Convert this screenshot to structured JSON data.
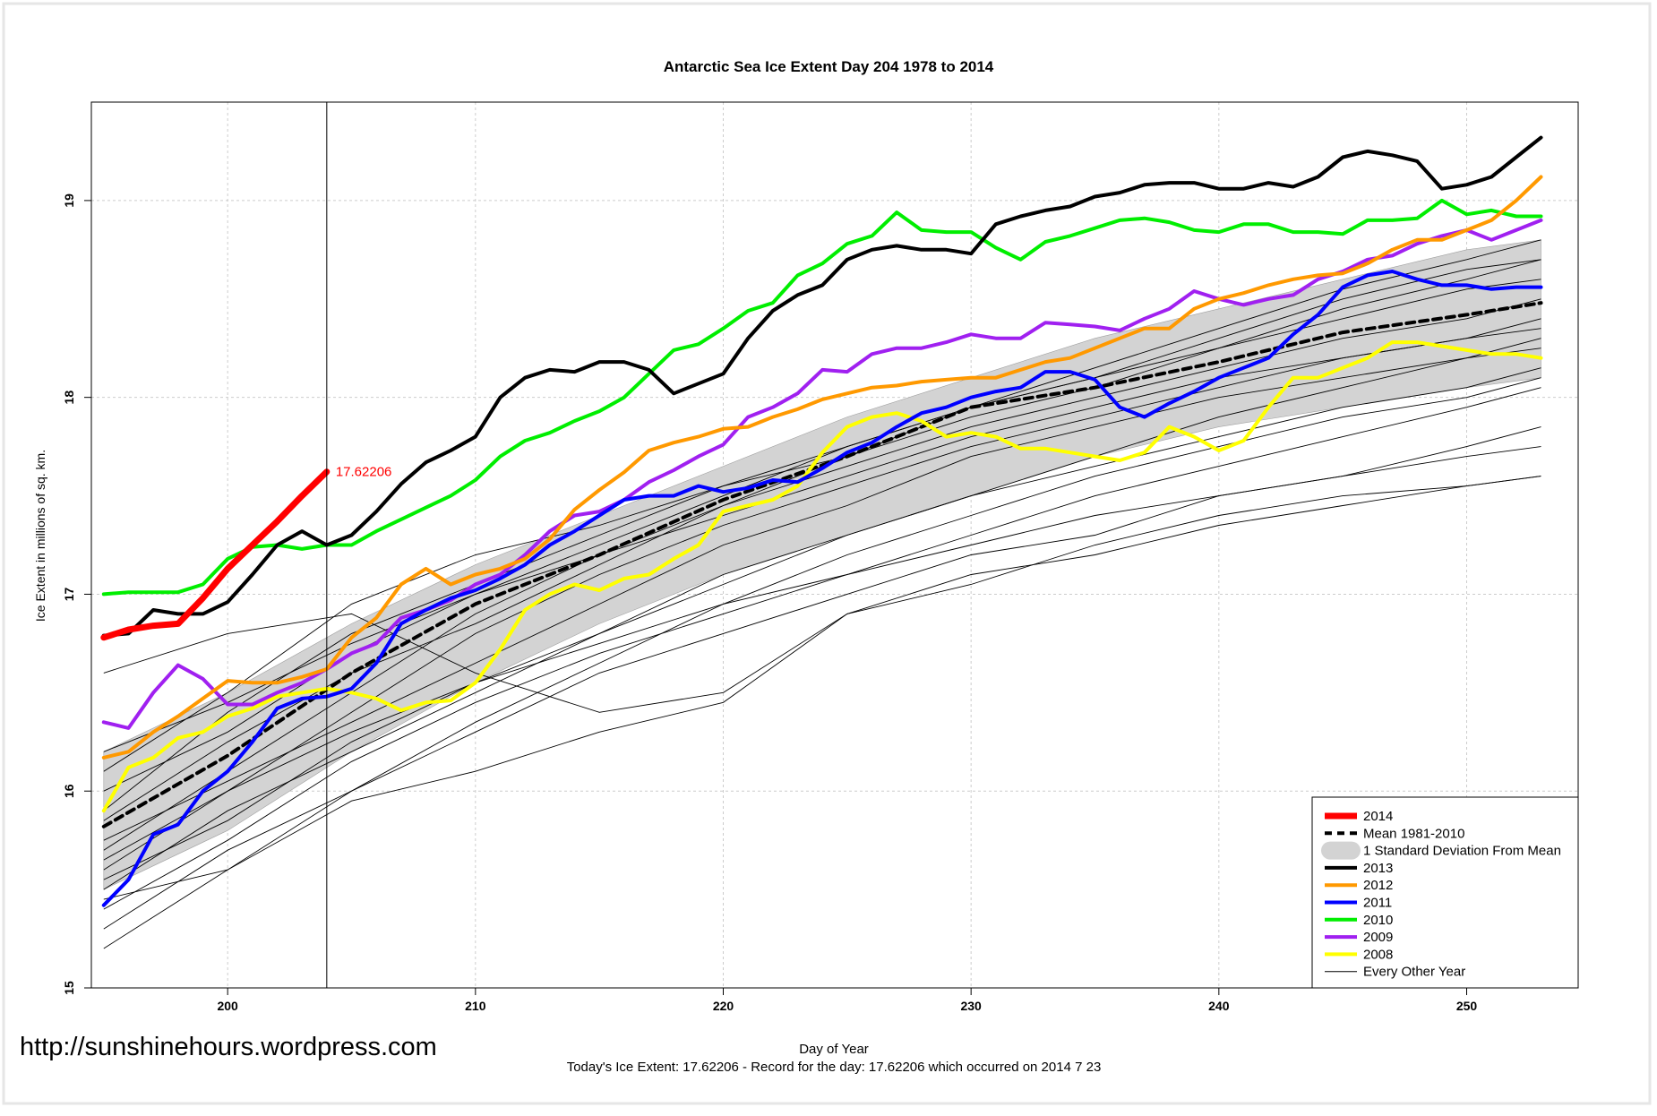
{
  "chart_data": {
    "type": "line",
    "title": "Antarctic Sea Ice Extent Day 204 1978 to 2014",
    "xlabel": "Day of Year",
    "ylabel": "Ice Extent in millions of sq. km.",
    "xlim": [
      194.5,
      254.5
    ],
    "ylim": [
      15,
      19.5
    ],
    "x_ticks": [
      200,
      210,
      220,
      230,
      240,
      250
    ],
    "y_ticks": [
      15,
      16,
      17,
      18,
      19
    ],
    "grid": true,
    "legend_position": "bottom-right",
    "marker_day": 204,
    "annotation": "17.62206",
    "watermark": "http://sunshinehours.wordpress.com",
    "footer": "Today's Ice Extent: 17.62206  - Record for the day: 17.62206 which occurred on 2014 7 23",
    "legend": [
      {
        "label": "2014",
        "color": "#ff0000",
        "style": "thick"
      },
      {
        "label": "Mean 1981-2010",
        "color": "#000000",
        "style": "dashed"
      },
      {
        "label": "1 Standard Deviation From Mean",
        "color": "#d3d3d3",
        "style": "band"
      },
      {
        "label": "2013",
        "color": "#000000",
        "style": "line"
      },
      {
        "label": "2012",
        "color": "#ff9900",
        "style": "line"
      },
      {
        "label": "2011",
        "color": "#0000ff",
        "style": "line"
      },
      {
        "label": "2010",
        "color": "#00ee00",
        "style": "line"
      },
      {
        "label": "2009",
        "color": "#a020f0",
        "style": "line"
      },
      {
        "label": "2008",
        "color": "#ffff00",
        "style": "line"
      },
      {
        "label": "Every Other Year",
        "color": "#000000",
        "style": "thin"
      }
    ],
    "sd_band": {
      "x": [
        195,
        200,
        205,
        210,
        215,
        220,
        225,
        230,
        235,
        240,
        245,
        250,
        253
      ],
      "upper": [
        16.2,
        16.5,
        16.85,
        17.15,
        17.4,
        17.65,
        17.9,
        18.1,
        18.3,
        18.45,
        18.6,
        18.75,
        18.8
      ],
      "lower": [
        15.5,
        15.8,
        16.2,
        16.55,
        16.85,
        17.1,
        17.3,
        17.5,
        17.7,
        17.85,
        17.95,
        18.05,
        18.1
      ]
    },
    "series": [
      {
        "name": "2014",
        "color": "#ff0000",
        "x": [
          195,
          196,
          197,
          198,
          199,
          200,
          201,
          202,
          203,
          204
        ],
        "values": [
          16.78,
          16.82,
          16.84,
          16.85,
          16.98,
          17.13,
          17.25,
          17.37,
          17.5,
          17.62206
        ]
      },
      {
        "name": "Mean 1981-2010",
        "color": "#000000",
        "x": [
          195,
          200,
          205,
          210,
          215,
          220,
          225,
          230,
          235,
          240,
          245,
          250,
          253
        ],
        "values": [
          15.82,
          16.18,
          16.6,
          16.95,
          17.2,
          17.48,
          17.7,
          17.95,
          18.05,
          18.18,
          18.33,
          18.42,
          18.48
        ]
      },
      {
        "name": "2013",
        "color": "#000000",
        "x": [
          195,
          196,
          197,
          198,
          199,
          200,
          201,
          202,
          203,
          204,
          205,
          206,
          207,
          208,
          209,
          210,
          211,
          212,
          213,
          214,
          215,
          216,
          217,
          218,
          219,
          220,
          221,
          222,
          223,
          224,
          225,
          226,
          227,
          228,
          229,
          230,
          231,
          232,
          233,
          234,
          235,
          236,
          237,
          238,
          239,
          240,
          241,
          242,
          243,
          244,
          245,
          246,
          247,
          248,
          249,
          250,
          251,
          252,
          253
        ],
        "values": [
          16.79,
          16.8,
          16.92,
          16.9,
          16.9,
          16.96,
          17.1,
          17.25,
          17.32,
          17.25,
          17.3,
          17.42,
          17.56,
          17.67,
          17.73,
          17.8,
          18.0,
          18.1,
          18.14,
          18.13,
          18.18,
          18.18,
          18.14,
          18.02,
          18.07,
          18.12,
          18.3,
          18.44,
          18.52,
          18.57,
          18.7,
          18.75,
          18.77,
          18.75,
          18.75,
          18.73,
          18.88,
          18.92,
          18.95,
          18.97,
          19.02,
          19.04,
          19.08,
          19.09,
          19.09,
          19.06,
          19.06,
          19.09,
          19.07,
          19.12,
          19.22,
          19.25,
          19.23,
          19.2,
          19.06,
          19.08,
          19.12,
          19.22,
          19.32
        ]
      },
      {
        "name": "2012",
        "color": "#ff9900",
        "x": [
          195,
          196,
          197,
          198,
          199,
          200,
          201,
          202,
          203,
          204,
          205,
          206,
          207,
          208,
          209,
          210,
          211,
          212,
          213,
          214,
          215,
          216,
          217,
          218,
          219,
          220,
          221,
          222,
          223,
          224,
          225,
          226,
          227,
          228,
          229,
          230,
          231,
          232,
          233,
          234,
          235,
          236,
          237,
          238,
          239,
          240,
          241,
          242,
          243,
          244,
          245,
          246,
          247,
          248,
          249,
          250,
          251,
          252,
          253
        ],
        "values": [
          16.17,
          16.2,
          16.3,
          16.38,
          16.47,
          16.56,
          16.55,
          16.55,
          16.58,
          16.62,
          16.78,
          16.88,
          17.05,
          17.13,
          17.05,
          17.1,
          17.13,
          17.18,
          17.28,
          17.43,
          17.53,
          17.62,
          17.73,
          17.77,
          17.8,
          17.84,
          17.85,
          17.9,
          17.94,
          17.99,
          18.02,
          18.05,
          18.06,
          18.08,
          18.09,
          18.1,
          18.1,
          18.14,
          18.18,
          18.2,
          18.25,
          18.3,
          18.35,
          18.35,
          18.45,
          18.5,
          18.53,
          18.57,
          18.6,
          18.62,
          18.63,
          18.68,
          18.75,
          18.8,
          18.8,
          18.85,
          18.9,
          19.0,
          19.12
        ]
      },
      {
        "name": "2011",
        "color": "#0000ff",
        "x": [
          195,
          196,
          197,
          198,
          199,
          200,
          201,
          202,
          203,
          204,
          205,
          206,
          207,
          208,
          209,
          210,
          211,
          212,
          213,
          214,
          215,
          216,
          217,
          218,
          219,
          220,
          221,
          222,
          223,
          224,
          225,
          226,
          227,
          228,
          229,
          230,
          231,
          232,
          233,
          234,
          235,
          236,
          237,
          238,
          239,
          240,
          241,
          242,
          243,
          244,
          245,
          246,
          247,
          248,
          249,
          250,
          251,
          252,
          253
        ],
        "values": [
          15.42,
          15.55,
          15.78,
          15.83,
          16.0,
          16.1,
          16.25,
          16.42,
          16.47,
          16.48,
          16.52,
          16.65,
          16.85,
          16.92,
          16.98,
          17.02,
          17.08,
          17.15,
          17.25,
          17.32,
          17.4,
          17.48,
          17.5,
          17.5,
          17.55,
          17.52,
          17.54,
          17.58,
          17.57,
          17.64,
          17.72,
          17.77,
          17.85,
          17.92,
          17.95,
          18.0,
          18.03,
          18.05,
          18.13,
          18.13,
          18.09,
          17.95,
          17.9,
          17.97,
          18.03,
          18.1,
          18.15,
          18.2,
          18.32,
          18.42,
          18.56,
          18.62,
          18.64,
          18.6,
          18.57,
          18.57,
          18.55,
          18.56,
          18.56
        ]
      },
      {
        "name": "2010",
        "color": "#00ee00",
        "x": [
          195,
          196,
          197,
          198,
          199,
          200,
          201,
          202,
          203,
          204,
          205,
          206,
          207,
          208,
          209,
          210,
          211,
          212,
          213,
          214,
          215,
          216,
          217,
          218,
          219,
          220,
          221,
          222,
          223,
          224,
          225,
          226,
          227,
          228,
          229,
          230,
          231,
          232,
          233,
          234,
          235,
          236,
          237,
          238,
          239,
          240,
          241,
          242,
          243,
          244,
          245,
          246,
          247,
          248,
          249,
          250,
          251,
          252,
          253
        ],
        "values": [
          17.0,
          17.01,
          17.01,
          17.01,
          17.05,
          17.18,
          17.24,
          17.25,
          17.23,
          17.25,
          17.25,
          17.32,
          17.38,
          17.44,
          17.5,
          17.58,
          17.7,
          17.78,
          17.82,
          17.88,
          17.93,
          18.0,
          18.12,
          18.24,
          18.27,
          18.35,
          18.44,
          18.48,
          18.62,
          18.68,
          18.78,
          18.82,
          18.94,
          18.85,
          18.84,
          18.84,
          18.76,
          18.7,
          18.79,
          18.82,
          18.86,
          18.9,
          18.91,
          18.89,
          18.85,
          18.84,
          18.88,
          18.88,
          18.84,
          18.84,
          18.83,
          18.9,
          18.9,
          18.91,
          19.0,
          18.93,
          18.95,
          18.92,
          18.92
        ]
      },
      {
        "name": "2009",
        "color": "#a020f0",
        "x": [
          195,
          196,
          197,
          198,
          199,
          200,
          201,
          202,
          203,
          204,
          205,
          206,
          207,
          208,
          209,
          210,
          211,
          212,
          213,
          214,
          215,
          216,
          217,
          218,
          219,
          220,
          221,
          222,
          223,
          224,
          225,
          226,
          227,
          228,
          229,
          230,
          231,
          232,
          233,
          234,
          235,
          236,
          237,
          238,
          239,
          240,
          241,
          242,
          243,
          244,
          245,
          246,
          247,
          248,
          249,
          250,
          251,
          252,
          253
        ],
        "values": [
          16.35,
          16.32,
          16.5,
          16.64,
          16.57,
          16.44,
          16.44,
          16.5,
          16.55,
          16.62,
          16.7,
          16.75,
          16.88,
          16.92,
          16.97,
          17.05,
          17.1,
          17.2,
          17.32,
          17.4,
          17.42,
          17.48,
          17.57,
          17.63,
          17.7,
          17.76,
          17.9,
          17.95,
          18.02,
          18.14,
          18.13,
          18.22,
          18.25,
          18.25,
          18.28,
          18.32,
          18.3,
          18.3,
          18.38,
          18.37,
          18.36,
          18.34,
          18.4,
          18.45,
          18.54,
          18.5,
          18.47,
          18.5,
          18.52,
          18.6,
          18.64,
          18.7,
          18.72,
          18.78,
          18.82,
          18.85,
          18.8,
          18.85,
          18.9
        ]
      },
      {
        "name": "2008",
        "color": "#ffff00",
        "x": [
          195,
          196,
          197,
          198,
          199,
          200,
          201,
          202,
          203,
          204,
          205,
          206,
          207,
          208,
          209,
          210,
          211,
          212,
          213,
          214,
          215,
          216,
          217,
          218,
          219,
          220,
          221,
          222,
          223,
          224,
          225,
          226,
          227,
          228,
          229,
          230,
          231,
          232,
          233,
          234,
          235,
          236,
          237,
          238,
          239,
          240,
          241,
          242,
          243,
          244,
          245,
          246,
          247,
          248,
          249,
          250,
          251,
          252,
          253
        ],
        "values": [
          15.9,
          16.12,
          16.17,
          16.27,
          16.3,
          16.38,
          16.42,
          16.48,
          16.5,
          16.52,
          16.5,
          16.47,
          16.41,
          16.45,
          16.46,
          16.55,
          16.72,
          16.92,
          17.0,
          17.05,
          17.02,
          17.08,
          17.1,
          17.18,
          17.25,
          17.42,
          17.45,
          17.48,
          17.55,
          17.72,
          17.85,
          17.9,
          17.92,
          17.88,
          17.8,
          17.82,
          17.8,
          17.74,
          17.74,
          17.72,
          17.7,
          17.68,
          17.72,
          17.85,
          17.8,
          17.73,
          17.78,
          17.95,
          18.1,
          18.1,
          18.15,
          18.2,
          18.28,
          18.28,
          18.26,
          18.24,
          18.22,
          18.22,
          18.2
        ]
      }
    ],
    "other_years": [
      [
        15.2,
        15.6,
        16.0,
        16.3,
        16.6,
        16.8,
        17.0,
        17.2,
        17.3,
        17.5,
        17.6,
        17.75,
        17.85
      ],
      [
        15.5,
        15.9,
        16.2,
        16.5,
        16.8,
        17.1,
        17.3,
        17.5,
        17.65,
        17.8,
        17.95,
        18.05,
        18.15
      ],
      [
        16.6,
        16.8,
        16.9,
        16.6,
        16.4,
        16.5,
        16.9,
        17.1,
        17.2,
        17.35,
        17.45,
        17.55,
        17.6
      ],
      [
        15.45,
        15.6,
        15.95,
        16.1,
        16.3,
        16.45,
        16.9,
        17.05,
        17.25,
        17.4,
        17.5,
        17.55,
        17.6
      ],
      [
        15.6,
        16.0,
        16.4,
        16.8,
        17.1,
        17.35,
        17.55,
        17.75,
        17.9,
        18.05,
        18.2,
        18.3,
        18.4
      ],
      [
        16.0,
        16.3,
        16.7,
        17.0,
        17.25,
        17.5,
        17.75,
        17.95,
        18.1,
        18.25,
        18.4,
        18.55,
        18.6
      ],
      [
        15.7,
        16.1,
        16.5,
        16.9,
        17.2,
        17.45,
        17.65,
        17.85,
        18.0,
        18.15,
        18.3,
        18.4,
        18.5
      ],
      [
        15.3,
        15.7,
        16.0,
        16.35,
        16.65,
        16.95,
        17.2,
        17.4,
        17.6,
        17.75,
        17.9,
        18.0,
        18.1
      ],
      [
        15.9,
        16.4,
        16.8,
        17.05,
        17.3,
        17.55,
        17.75,
        17.95,
        18.15,
        18.35,
        18.55,
        18.7,
        18.8
      ],
      [
        16.1,
        16.5,
        16.95,
        17.2,
        17.35,
        17.55,
        17.7,
        17.9,
        18.05,
        18.25,
        18.45,
        18.6,
        18.7
      ],
      [
        15.55,
        15.85,
        16.25,
        16.55,
        16.8,
        17.05,
        17.3,
        17.5,
        17.7,
        17.9,
        18.05,
        18.2,
        18.3
      ],
      [
        15.75,
        16.05,
        16.35,
        16.65,
        16.95,
        17.25,
        17.45,
        17.7,
        17.85,
        18.0,
        18.1,
        18.2,
        18.25
      ],
      [
        15.4,
        15.75,
        16.15,
        16.45,
        16.7,
        16.9,
        17.1,
        17.3,
        17.5,
        17.65,
        17.8,
        17.95,
        18.05
      ],
      [
        16.2,
        16.45,
        16.75,
        17.0,
        17.2,
        17.4,
        17.6,
        17.8,
        17.95,
        18.1,
        18.2,
        18.3,
        18.35
      ],
      [
        15.65,
        16.0,
        16.3,
        16.55,
        16.75,
        16.95,
        17.1,
        17.25,
        17.4,
        17.5,
        17.6,
        17.7,
        17.75
      ],
      [
        15.85,
        16.25,
        16.6,
        16.85,
        17.15,
        17.45,
        17.7,
        17.95,
        18.1,
        18.3,
        18.5,
        18.65,
        18.7
      ]
    ]
  }
}
